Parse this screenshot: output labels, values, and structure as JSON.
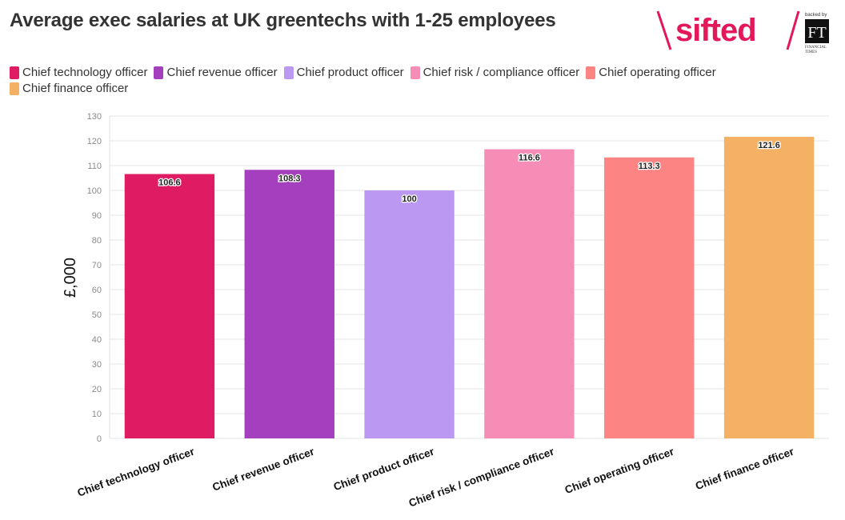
{
  "header": {
    "title": "Average exec salaries at UK greentechs with 1-25 employees"
  },
  "logo": {
    "brand": "sifted",
    "backed_by": "backed by",
    "ft_mark": "FT",
    "ft_name_1": "FINANCIAL",
    "ft_name_2": "TIMES"
  },
  "chart_data": {
    "type": "bar",
    "title": "Average exec salaries at UK greentechs with 1-25 employees",
    "ylabel": "£,000",
    "xlabel": "",
    "ylim": [
      0,
      130
    ],
    "yticks": [
      0,
      10,
      20,
      30,
      40,
      50,
      60,
      70,
      80,
      90,
      100,
      110,
      120,
      130
    ],
    "grid": true,
    "legend_position": "top-left",
    "categories": [
      "Chief technology officer",
      "Chief revenue officer",
      "Chief product officer",
      "Chief risk / compliance officer",
      "Chief operating officer",
      "Chief finance officer"
    ],
    "values": [
      106.6,
      108.3,
      100,
      116.6,
      113.3,
      121.6
    ],
    "colors": [
      "#df1c63",
      "#a43fbd",
      "#bb99f2",
      "#f58db7",
      "#fc8482",
      "#f5b163"
    ]
  }
}
